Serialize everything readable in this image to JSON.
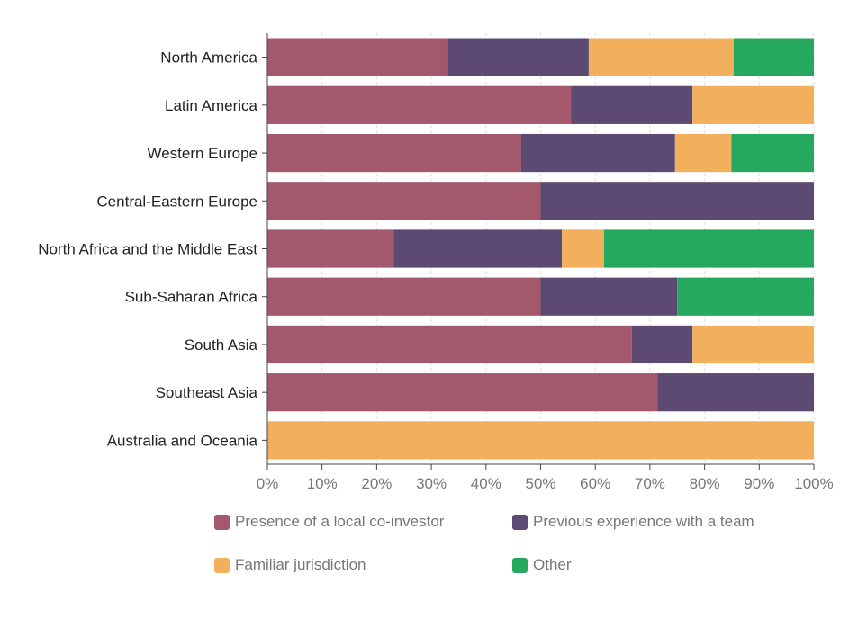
{
  "chart_data": {
    "type": "bar",
    "orientation": "horizontal",
    "stacked": true,
    "categories": [
      "North America",
      "Latin America",
      "Western Europe",
      "Central-Eastern Europe",
      "North Africa and the Middle East",
      "Sub-Saharan Africa",
      "South Asia",
      "Southeast Asia",
      "Australia and Oceania"
    ],
    "series": [
      {
        "name": "Presence of a local co-investor",
        "color": "#a3596b",
        "values": [
          33,
          55.6,
          46.4,
          50,
          23.1,
          50,
          66.7,
          71.4,
          0
        ]
      },
      {
        "name": "Previous experience with a team",
        "color": "#5d4a72",
        "values": [
          25.8,
          22.2,
          28.2,
          50,
          30.8,
          25,
          11.1,
          28.6,
          0
        ]
      },
      {
        "name": "Familiar jurisdiction",
        "color": "#f2b05c",
        "values": [
          26.5,
          22.2,
          10.3,
          0,
          7.7,
          0,
          22.2,
          0,
          100
        ]
      },
      {
        "name": "Other",
        "color": "#27a85f",
        "values": [
          14.7,
          0,
          15.1,
          0,
          38.4,
          25,
          0,
          0,
          0
        ]
      }
    ],
    "xlim": [
      0,
      100
    ],
    "xticks": [
      "0%",
      "10%",
      "20%",
      "30%",
      "40%",
      "50%",
      "60%",
      "70%",
      "80%",
      "90%",
      "100%"
    ],
    "grid": true,
    "legend_position": "bottom"
  }
}
